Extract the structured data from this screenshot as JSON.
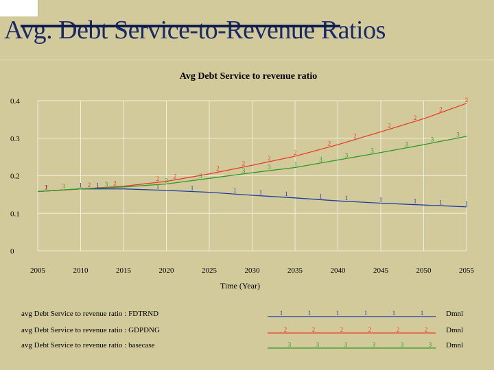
{
  "slide": {
    "title": "Avg. Debt Service-to-Revenue Ratios"
  },
  "colors": {
    "background": "#d3ca9c",
    "title_text": "#1a2a66",
    "grid": "#f2eede",
    "series_1": "#1f3fa0",
    "series_2": "#e5402a",
    "series_3": "#2a9a2a"
  },
  "chart_data": {
    "type": "line",
    "title": "Avg Debt Service to revenue ratio",
    "xlabel": "Time (Year)",
    "ylabel": "",
    "xlim": [
      2005,
      2055
    ],
    "ylim": [
      0,
      0.4
    ],
    "x_ticks": [
      "2005",
      "2010",
      "2015",
      "2020",
      "2025",
      "2030",
      "2035",
      "2040",
      "2045",
      "2050",
      "2055"
    ],
    "y_ticks": [
      "0.4",
      "0.3",
      "0.2",
      "0.1",
      "0"
    ],
    "grid": true,
    "legend_position": "bottom",
    "series": [
      {
        "name": "avg Debt Service to revenue ratio : FDTRND",
        "marker": "1",
        "units": "Dmnl",
        "x": [
          2005,
          2010,
          2015,
          2020,
          2025,
          2030,
          2035,
          2040,
          2045,
          2050,
          2055
        ],
        "values": [
          0.158,
          0.165,
          0.165,
          0.161,
          0.156,
          0.148,
          0.141,
          0.133,
          0.127,
          0.122,
          0.117
        ]
      },
      {
        "name": "avg Debt Service to revenue ratio : GDPDNG",
        "marker": "2",
        "units": "Dmnl",
        "x": [
          2005,
          2010,
          2015,
          2020,
          2025,
          2030,
          2035,
          2040,
          2045,
          2050,
          2055
        ],
        "values": [
          0.158,
          0.165,
          0.172,
          0.185,
          0.205,
          0.228,
          0.252,
          0.283,
          0.317,
          0.352,
          0.393
        ]
      },
      {
        "name": "avg Debt Service to revenue ratio : basecase",
        "marker": "3",
        "units": "Dmnl",
        "x": [
          2005,
          2010,
          2015,
          2020,
          2025,
          2030,
          2035,
          2040,
          2045,
          2050,
          2055
        ],
        "values": [
          0.158,
          0.165,
          0.17,
          0.178,
          0.193,
          0.208,
          0.222,
          0.242,
          0.262,
          0.283,
          0.305
        ]
      }
    ]
  }
}
